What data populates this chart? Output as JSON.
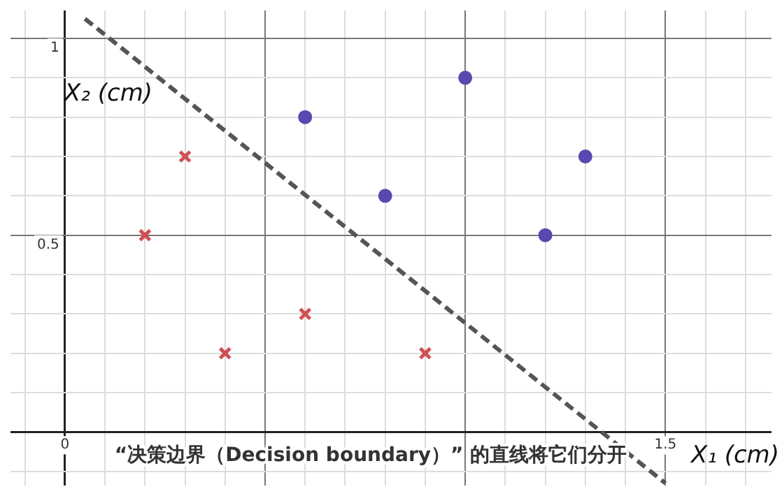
{
  "chart_data": {
    "type": "scatter",
    "xlabel": "X₁ (cm)",
    "ylabel": "X₂ (cm)",
    "annotations": [
      "“决策边界（Decision boundary）” 的直线将它们分开"
    ],
    "xlim": [
      -0.136,
      1.765
    ],
    "ylim": [
      -0.136,
      1.071
    ],
    "xticks": [
      {
        "value": -0.1,
        "label": null
      },
      {
        "value": 0,
        "label": "0"
      },
      {
        "value": 0.1,
        "label": null
      },
      {
        "value": 0.2,
        "label": null
      },
      {
        "value": 0.3,
        "label": null
      },
      {
        "value": 0.4,
        "label": null
      },
      {
        "value": 0.5,
        "label": null
      },
      {
        "value": 0.6,
        "label": null
      },
      {
        "value": 0.7,
        "label": null
      },
      {
        "value": 0.8,
        "label": null
      },
      {
        "value": 0.9,
        "label": null
      },
      {
        "value": 1,
        "label": null
      },
      {
        "value": 1.1,
        "label": null
      },
      {
        "value": 1.2,
        "label": null
      },
      {
        "value": 1.3,
        "label": null
      },
      {
        "value": 1.4,
        "label": null
      },
      {
        "value": 1.5,
        "label": "1.5"
      },
      {
        "value": 1.6,
        "label": null
      },
      {
        "value": 1.7,
        "label": null
      }
    ],
    "yticks": [
      {
        "value": -0.1,
        "label": null
      },
      {
        "value": 0,
        "label": null
      },
      {
        "value": 0.1,
        "label": null
      },
      {
        "value": 0.2,
        "label": null
      },
      {
        "value": 0.3,
        "label": null
      },
      {
        "value": 0.4,
        "label": null
      },
      {
        "value": 0.5,
        "label": "0.5"
      },
      {
        "value": 0.6,
        "label": null
      },
      {
        "value": 0.7,
        "label": null
      },
      {
        "value": 0.8,
        "label": null
      },
      {
        "value": 0.9,
        "label": null
      },
      {
        "value": 1,
        "label": "1"
      }
    ],
    "grid": true,
    "legend": false,
    "series": [
      {
        "color": "#d05055",
        "marker": "cross",
        "x": [
          0.2,
          0.3,
          0.4,
          0.6,
          0.9
        ],
        "values": [
          0.5,
          0.7,
          0.2,
          0.3,
          0.2
        ]
      },
      {
        "color": "#5a48b0",
        "marker": "circle",
        "x": [
          0.6,
          0.8,
          1.0,
          1.2,
          1.3
        ],
        "values": [
          0.8,
          0.6,
          0.9,
          0.5,
          0.7
        ]
      },
      {
        "type": "line",
        "color": "#555555",
        "line_style": "dashed",
        "marker": "none",
        "x": [
          0.05,
          1.5
        ],
        "values": [
          1.05,
          -0.13
        ]
      }
    ]
  }
}
